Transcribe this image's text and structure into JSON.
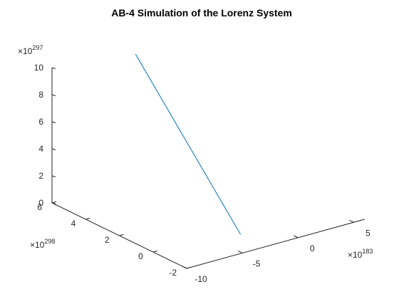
{
  "chart_data": {
    "type": "line3d",
    "title": "AB-4 Simulation of the Lorenz System",
    "axes": {
      "x": {
        "exponent_base": "×10",
        "exponent": "183",
        "ticks": [
          -10,
          -5,
          0,
          5
        ],
        "tick_labels": [
          "-10",
          "-5",
          "0",
          "5"
        ],
        "lim": [
          -10,
          6
        ]
      },
      "y": {
        "exponent_base": "×10",
        "exponent": "298",
        "ticks": [
          -2,
          0,
          2,
          4,
          6
        ],
        "tick_labels": [
          "-2",
          "0",
          "2",
          "4",
          "6"
        ],
        "lim": [
          -2,
          6
        ]
      },
      "z": {
        "exponent_base": "×10",
        "exponent": "297",
        "ticks": [
          0,
          2,
          4,
          6,
          8,
          10
        ],
        "tick_labels": [
          "0",
          "2",
          "4",
          "6",
          "8",
          "10"
        ],
        "lim": [
          0,
          10
        ]
      }
    },
    "series": [
      {
        "color": "#0072BD",
        "points": [
          {
            "x": -2.5,
            "y": 6.0,
            "z": 9.3
          },
          {
            "x": -2.9,
            "y": -0.5,
            "z": 0.0
          }
        ]
      }
    ],
    "grid": false,
    "box": false
  }
}
